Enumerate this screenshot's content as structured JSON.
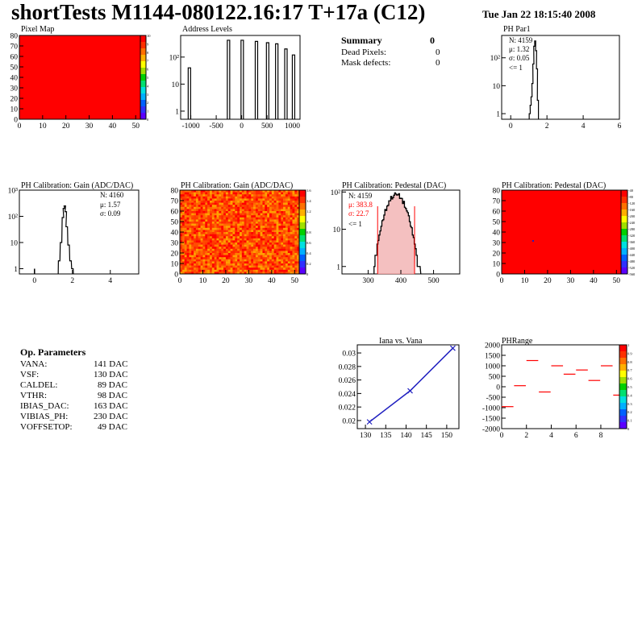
{
  "header": {
    "title": "shortTests M1144-080122.16:17 T+17a (C12)",
    "date": "Tue Jan 22 18:15:40 2008"
  },
  "colors": {
    "red": "#ff0000",
    "blue": "#2020c0",
    "palette": [
      "#5a00ff",
      "#3030ff",
      "#0060ff",
      "#00b0ff",
      "#00e0e0",
      "#00e070",
      "#00d000",
      "#a0e000",
      "#ffff00",
      "#ffb000",
      "#ff7000",
      "#ff3000",
      "#ff0000"
    ]
  },
  "summary": {
    "title": "Summary",
    "count": "0",
    "rows": [
      {
        "label": "Dead Pixels:",
        "value": "0"
      },
      {
        "label": "Mask defects:",
        "value": "0"
      }
    ]
  },
  "op_params": {
    "title": "Op. Parameters",
    "rows": [
      {
        "name": "VANA:",
        "value": "141 DAC"
      },
      {
        "name": "VSF:",
        "value": "130 DAC"
      },
      {
        "name": "CALDEL:",
        "value": "89 DAC"
      },
      {
        "name": "VTHR:",
        "value": "98 DAC"
      },
      {
        "name": "IBIAS_DAC:",
        "value": "163 DAC"
      },
      {
        "name": "VIBIAS_PH:",
        "value": "230 DAC"
      },
      {
        "name": "VOFFSETOP:",
        "value": "49 DAC"
      }
    ]
  },
  "chart_data": [
    {
      "id": "pixel_map",
      "type": "heatmap",
      "title": "Pixel Map",
      "xlim": [
        0,
        52
      ],
      "ylim": [
        0,
        80
      ],
      "xticks": [
        "0",
        "10",
        "20",
        "30",
        "40",
        "50"
      ],
      "yticks": [
        "0",
        "10",
        "20",
        "30",
        "40",
        "50",
        "60",
        "70",
        "80"
      ],
      "fill": "uniform maximum",
      "zlim": [
        0,
        10
      ],
      "zticks": [
        "0",
        "1",
        "2",
        "3",
        "4",
        "5",
        "6",
        "7",
        "8",
        "9",
        "10"
      ]
    },
    {
      "id": "address_levels",
      "type": "bar",
      "title": "Address Levels",
      "log_y": true,
      "xlim": [
        -1200,
        1150
      ],
      "xticks": [
        "-1000",
        "-500",
        "0",
        "500",
        "1000"
      ],
      "yticks": [
        "1",
        "10",
        "10²"
      ],
      "peaks": [
        {
          "x": -1020,
          "y": 40
        },
        {
          "x": -250,
          "y": 420
        },
        {
          "x": 20,
          "y": 420
        },
        {
          "x": 300,
          "y": 380
        },
        {
          "x": 520,
          "y": 340
        },
        {
          "x": 700,
          "y": 310
        },
        {
          "x": 880,
          "y": 200
        },
        {
          "x": 1030,
          "y": 120
        }
      ]
    },
    {
      "id": "ph_par1",
      "type": "bar",
      "title": "PH Par1",
      "log_y": true,
      "xlim": [
        -0.5,
        6
      ],
      "xticks": [
        "0",
        "2",
        "4",
        "6"
      ],
      "yticks": [
        "1",
        "10",
        "10²"
      ],
      "stats": {
        "n": "N: 4159",
        "mu": "μ: 1.32",
        "sigma": "σ: 0.05",
        "extra": "<= 1"
      },
      "bins": [
        {
          "x": 1.05,
          "y": 1
        },
        {
          "x": 1.1,
          "y": 2
        },
        {
          "x": 1.15,
          "y": 4
        },
        {
          "x": 1.2,
          "y": 12
        },
        {
          "x": 1.25,
          "y": 60
        },
        {
          "x": 1.3,
          "y": 260
        },
        {
          "x": 1.35,
          "y": 400
        },
        {
          "x": 1.4,
          "y": 180
        },
        {
          "x": 1.45,
          "y": 40
        },
        {
          "x": 1.5,
          "y": 3
        }
      ]
    },
    {
      "id": "gain_hist",
      "type": "bar",
      "title": "PH Calibration: Gain (ADC/DAC)",
      "log_y": true,
      "xlim": [
        -0.8,
        5.5
      ],
      "xticks": [
        "0",
        "2",
        "4"
      ],
      "yticks": [
        "1",
        "10",
        "10²",
        "10³"
      ],
      "stats": {
        "n": "N: 4160",
        "mu": "μ: 1.57",
        "sigma": "σ: 0.09"
      },
      "bins": [
        {
          "x": 0.0,
          "y": 1
        },
        {
          "x": 1.3,
          "y": 2
        },
        {
          "x": 1.4,
          "y": 10
        },
        {
          "x": 1.5,
          "y": 90
        },
        {
          "x": 1.55,
          "y": 200
        },
        {
          "x": 1.6,
          "y": 250
        },
        {
          "x": 1.65,
          "y": 150
        },
        {
          "x": 1.7,
          "y": 40
        },
        {
          "x": 1.8,
          "y": 8
        },
        {
          "x": 1.9,
          "y": 2
        },
        {
          "x": 2.0,
          "y": 1
        }
      ]
    },
    {
      "id": "gain_map",
      "type": "heatmap",
      "title": "PH Calibration: Gain (ADC/DAC)",
      "xlim": [
        0,
        52
      ],
      "ylim": [
        0,
        80
      ],
      "xticks": [
        "0",
        "10",
        "20",
        "30",
        "40",
        "50"
      ],
      "yticks": [
        "0",
        "10",
        "20",
        "30",
        "40",
        "50",
        "60",
        "70",
        "80"
      ],
      "zlim": [
        0,
        1.6
      ],
      "zticks": [
        "0",
        "0.2",
        "0.4",
        "0.6",
        "0.8",
        "1",
        "1.2",
        "1.4",
        "1.6"
      ],
      "fill": "random red-orange"
    },
    {
      "id": "pedestal_hist",
      "type": "bar",
      "title": "PH Calibration: Pedestal (DAC)",
      "log_y": true,
      "xlim": [
        220,
        580
      ],
      "xticks": [
        "300",
        "400",
        "500"
      ],
      "yticks": [
        "1",
        "10",
        "10²"
      ],
      "stats": {
        "n": "N: 4159",
        "mu": "μ: 383.8",
        "sigma": "σ: 22.7",
        "extra": "<= 1"
      },
      "cut_lines": [
        329,
        442
      ]
    },
    {
      "id": "pedestal_map",
      "type": "heatmap",
      "title": "PH Calibration: Pedestal (DAC)",
      "xlim": [
        0,
        52
      ],
      "ylim": [
        0,
        80
      ],
      "xticks": [
        "0",
        "10",
        "20",
        "30",
        "40",
        "50"
      ],
      "yticks": [
        "0",
        "10",
        "20",
        "30",
        "40",
        "50",
        "60",
        "70",
        "80"
      ],
      "zticks": [
        "-560",
        "-520",
        "-480",
        "-440",
        "-400",
        "-360",
        "-320",
        "-280",
        "-240",
        "-200",
        "-160",
        "-120",
        "-80",
        "-40"
      ],
      "fill": "uniform maximum"
    },
    {
      "id": "iana_vana",
      "type": "line",
      "title": "Iana vs. Vana",
      "xlim": [
        128,
        153
      ],
      "ylim": [
        0.0188,
        0.0312
      ],
      "xticks": [
        "130",
        "135",
        "140",
        "145",
        "150"
      ],
      "yticks": [
        "0.02",
        "0.022",
        "0.024",
        "0.026",
        "0.028",
        "0.03"
      ],
      "points": [
        {
          "x": 131,
          "y": 0.0198
        },
        {
          "x": 141,
          "y": 0.0244
        },
        {
          "x": 151.5,
          "y": 0.0307
        }
      ]
    },
    {
      "id": "ph_range",
      "type": "scatter",
      "title": "PHRange",
      "xlim": [
        0,
        9.5
      ],
      "ylim": [
        -2000,
        2000
      ],
      "xticks": [
        "0",
        "2",
        "4",
        "6",
        "8"
      ],
      "yticks": [
        "2000",
        "1500",
        "1000",
        "500",
        "0",
        "-500",
        "-1000",
        "-1500",
        "-2000"
      ],
      "zticks": [
        "0",
        "0.1",
        "0.2",
        "0.3",
        "0.4",
        "0.5",
        "0.6",
        "0.7",
        "0.8",
        "0.9",
        "1"
      ],
      "segments": [
        {
          "x": 0,
          "y": -950
        },
        {
          "x": 1,
          "y": 50
        },
        {
          "x": 2,
          "y": 1250
        },
        {
          "x": 3,
          "y": -250
        },
        {
          "x": 4,
          "y": 1000
        },
        {
          "x": 5,
          "y": 600
        },
        {
          "x": 6,
          "y": 800
        },
        {
          "x": 7,
          "y": 300
        },
        {
          "x": 8,
          "y": 1000
        },
        {
          "x": 9,
          "y": -400
        }
      ]
    }
  ]
}
